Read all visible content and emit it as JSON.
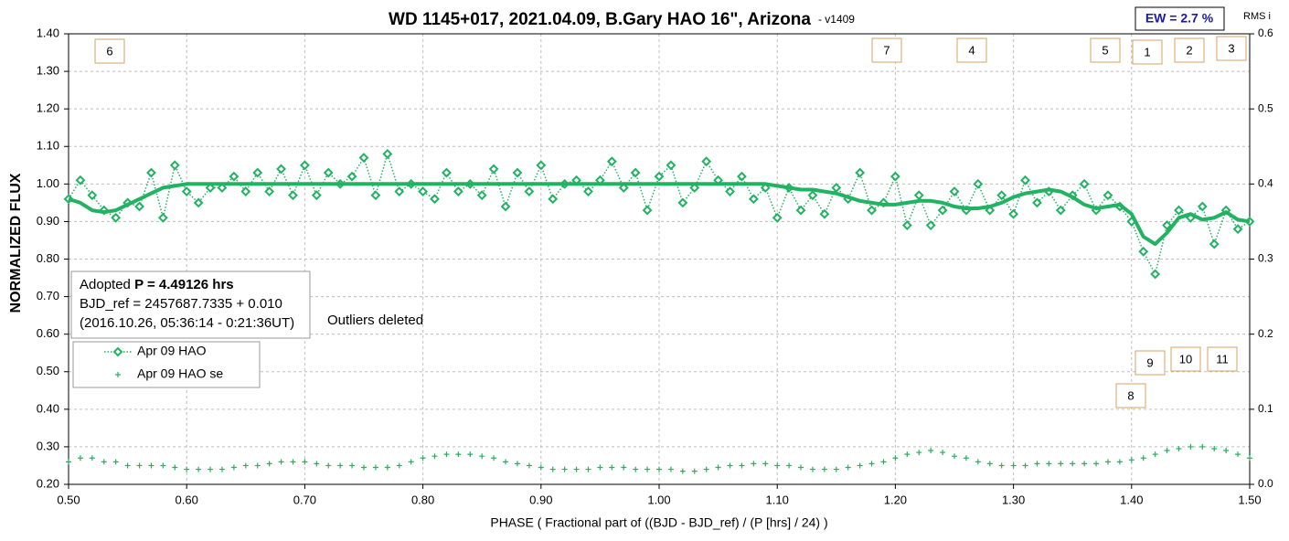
{
  "chart_data": {
    "type": "line",
    "title": "WD 1145+017, 2021.04.09, B.Gary HAO 16\", Arizona",
    "version": "- v1409",
    "ew": "EW = 2.7 %",
    "y2_label": "RMS i",
    "x_label": "PHASE ( Fractional part of ((BJD - BJD_ref) / (P [hrs] / 24) )",
    "y_label": "NORMALIZED FLUX",
    "adopted_label": "Adopted",
    "period": "P = 4.49126 hrs",
    "bjd_ref": "BJD_ref = 2457687.7335 + 0.010",
    "ref_date": "(2016.10.26, 05:36:14 - 0:21:36UT)",
    "note": "Outliers deleted",
    "markers": [
      "6",
      "7",
      "4",
      "5",
      "1",
      "2",
      "3",
      "9",
      "10",
      "11",
      "8"
    ],
    "grid": true,
    "x": [
      0.5,
      0.51,
      0.52,
      0.53,
      0.54,
      0.55,
      0.56,
      0.57,
      0.58,
      0.59,
      0.6,
      0.61,
      0.62,
      0.63,
      0.64,
      0.65,
      0.66,
      0.67,
      0.68,
      0.69,
      0.7,
      0.71,
      0.72,
      0.73,
      0.74,
      0.75,
      0.76,
      0.77,
      0.78,
      0.79,
      0.8,
      0.81,
      0.82,
      0.83,
      0.84,
      0.85,
      0.86,
      0.87,
      0.88,
      0.89,
      0.9,
      0.91,
      0.92,
      0.93,
      0.94,
      0.95,
      0.96,
      0.97,
      0.98,
      0.99,
      1.0,
      1.01,
      1.02,
      1.03,
      1.04,
      1.05,
      1.06,
      1.07,
      1.08,
      1.09,
      1.1,
      1.11,
      1.12,
      1.13,
      1.14,
      1.15,
      1.16,
      1.17,
      1.18,
      1.19,
      1.2,
      1.21,
      1.22,
      1.23,
      1.24,
      1.25,
      1.26,
      1.27,
      1.28,
      1.29,
      1.3,
      1.31,
      1.32,
      1.33,
      1.34,
      1.35,
      1.36,
      1.37,
      1.38,
      1.39,
      1.4,
      1.41,
      1.42,
      1.43,
      1.44,
      1.45,
      1.46,
      1.47,
      1.48,
      1.49,
      1.5
    ],
    "series": [
      {
        "name": "Apr 09 HAO",
        "color": "#21b262",
        "style": "dotted-diamond",
        "values": [
          0.96,
          1.01,
          0.97,
          0.93,
          0.91,
          0.95,
          0.94,
          1.03,
          0.91,
          1.05,
          0.98,
          0.95,
          0.99,
          0.99,
          1.02,
          0.98,
          1.03,
          0.98,
          1.04,
          0.97,
          1.05,
          0.97,
          1.03,
          1.0,
          1.02,
          1.07,
          0.97,
          1.08,
          0.98,
          1.0,
          0.98,
          0.96,
          1.03,
          0.98,
          1.0,
          0.97,
          1.04,
          0.94,
          1.03,
          0.98,
          1.05,
          0.96,
          1.0,
          1.01,
          0.98,
          1.01,
          1.06,
          0.99,
          1.03,
          0.93,
          1.02,
          1.05,
          0.95,
          0.99,
          1.06,
          1.01,
          0.98,
          1.02,
          0.96,
          0.99,
          0.91,
          0.99,
          0.93,
          0.97,
          0.92,
          0.99,
          0.96,
          1.03,
          0.93,
          0.95,
          1.02,
          0.89,
          0.97,
          0.89,
          0.93,
          0.98,
          0.93,
          1.0,
          0.93,
          0.97,
          0.92,
          1.01,
          0.95,
          0.98,
          0.93,
          0.97,
          1.0,
          0.93,
          0.97,
          0.94,
          0.9,
          0.82,
          0.76,
          0.89,
          0.93,
          0.91,
          0.94,
          0.84,
          0.93,
          0.88,
          0.9
        ]
      },
      {
        "color": "#21b262",
        "style": "thick",
        "values": [
          0.96,
          0.95,
          0.93,
          0.925,
          0.93,
          0.945,
          0.96,
          0.975,
          0.99,
          0.995,
          1.0,
          1.0,
          1.0,
          1.0,
          1.0,
          1.0,
          1.0,
          1.0,
          1.0,
          1.0,
          1.0,
          1.0,
          1.0,
          1.0,
          1.0,
          1.0,
          1.0,
          1.0,
          1.0,
          1.0,
          1.0,
          1.0,
          1.0,
          1.0,
          1.0,
          1.0,
          1.0,
          1.0,
          1.0,
          1.0,
          1.0,
          1.0,
          1.0,
          1.0,
          1.0,
          1.0,
          1.0,
          1.0,
          1.0,
          1.0,
          1.0,
          1.0,
          1.0,
          1.0,
          1.0,
          1.0,
          1.0,
          1.0,
          1.0,
          1.0,
          0.995,
          0.99,
          0.985,
          0.985,
          0.98,
          0.975,
          0.965,
          0.955,
          0.95,
          0.945,
          0.945,
          0.95,
          0.955,
          0.955,
          0.95,
          0.94,
          0.935,
          0.935,
          0.94,
          0.95,
          0.965,
          0.975,
          0.98,
          0.985,
          0.98,
          0.965,
          0.945,
          0.935,
          0.94,
          0.945,
          0.92,
          0.86,
          0.84,
          0.87,
          0.91,
          0.92,
          0.905,
          0.91,
          0.925,
          0.905,
          0.9
        ]
      },
      {
        "name": "Apr 09 HAO se",
        "color": "#21b262",
        "style": "plus",
        "values": [
          0.26,
          0.27,
          0.27,
          0.26,
          0.26,
          0.25,
          0.25,
          0.25,
          0.25,
          0.245,
          0.24,
          0.24,
          0.24,
          0.24,
          0.245,
          0.25,
          0.25,
          0.255,
          0.26,
          0.26,
          0.26,
          0.255,
          0.25,
          0.25,
          0.25,
          0.245,
          0.245,
          0.245,
          0.25,
          0.26,
          0.27,
          0.275,
          0.28,
          0.28,
          0.28,
          0.275,
          0.27,
          0.26,
          0.255,
          0.25,
          0.245,
          0.24,
          0.24,
          0.24,
          0.24,
          0.245,
          0.245,
          0.245,
          0.24,
          0.24,
          0.24,
          0.24,
          0.235,
          0.235,
          0.24,
          0.245,
          0.25,
          0.25,
          0.255,
          0.255,
          0.25,
          0.25,
          0.245,
          0.24,
          0.24,
          0.24,
          0.245,
          0.25,
          0.255,
          0.26,
          0.27,
          0.28,
          0.285,
          0.29,
          0.285,
          0.275,
          0.27,
          0.26,
          0.255,
          0.25,
          0.25,
          0.25,
          0.255,
          0.255,
          0.255,
          0.255,
          0.255,
          0.255,
          0.26,
          0.26,
          0.265,
          0.27,
          0.28,
          0.29,
          0.295,
          0.3,
          0.3,
          0.295,
          0.29,
          0.28,
          0.27
        ]
      }
    ],
    "xlim": [
      0.5,
      1.5
    ],
    "xticks": [
      {
        "value": 0.5,
        "label": "0.50"
      },
      {
        "value": 0.6,
        "label": "0.60"
      },
      {
        "value": 0.7,
        "label": "0.70"
      },
      {
        "value": 0.8,
        "label": "0.80"
      },
      {
        "value": 0.9,
        "label": "0.90"
      },
      {
        "value": 1.0,
        "label": "1.00"
      },
      {
        "value": 1.1,
        "label": "1.10"
      },
      {
        "value": 1.2,
        "label": "1.20"
      },
      {
        "value": 1.3,
        "label": "1.30"
      },
      {
        "value": 1.4,
        "label": "1.40"
      },
      {
        "value": 1.5,
        "label": "1.50"
      }
    ],
    "ylim": [
      0.2,
      1.4
    ],
    "yticks": [
      {
        "value": 0.2,
        "label": "0.20"
      },
      {
        "value": 0.3,
        "label": "0.30"
      },
      {
        "value": 0.4,
        "label": "0.40"
      },
      {
        "value": 0.5,
        "label": "0.50"
      },
      {
        "value": 0.6,
        "label": "0.60"
      },
      {
        "value": 0.7,
        "label": "0.70"
      },
      {
        "value": 0.8,
        "label": "0.80"
      },
      {
        "value": 0.9,
        "label": "0.90"
      },
      {
        "value": 1.0,
        "label": "1.00"
      },
      {
        "value": 1.1,
        "label": "1.10"
      },
      {
        "value": 1.2,
        "label": "1.20"
      },
      {
        "value": 1.3,
        "label": "1.30"
      },
      {
        "value": 1.4,
        "label": "1.40"
      }
    ],
    "y2lim": [
      0,
      0.6
    ],
    "y2ticks": [
      {
        "value": 0,
        "label": "0.0"
      },
      0.1,
      0.2,
      0.3,
      0.4,
      0.5,
      0.6
    ]
  }
}
